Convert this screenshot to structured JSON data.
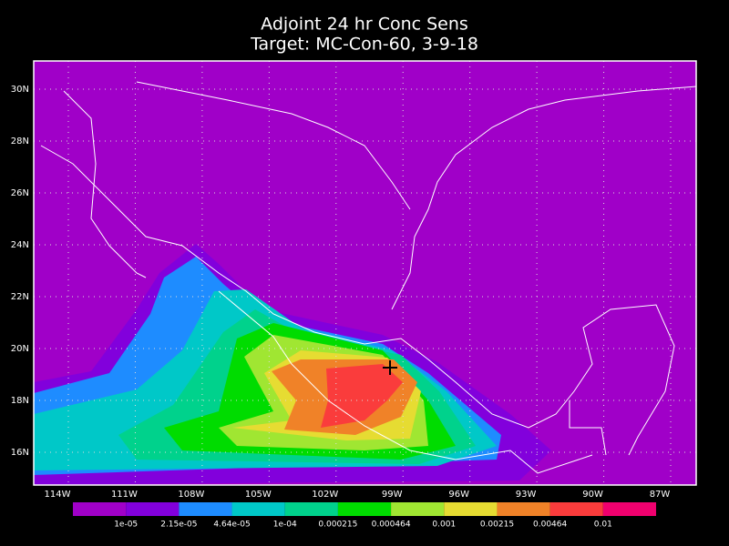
{
  "title": [
    "Adjoint 24 hr Conc Sens",
    "Target: MC-Con-60, 3-9-18"
  ],
  "lat_labels": [
    "30N",
    "28N",
    "26N",
    "24N",
    "22N",
    "20N",
    "18N",
    "16N"
  ],
  "lon_labels": [
    "114W",
    "111W",
    "108W",
    "105W",
    "102W",
    "99W",
    "96W",
    "93W",
    "90W",
    "87W"
  ],
  "colorbar": {
    "labels": [
      "1e-05",
      "2.15e-05",
      "4.64e-05",
      "1e-04",
      "0.000215",
      "0.000464",
      "0.001",
      "0.00215",
      "0.00464",
      "0.01"
    ],
    "colors": [
      "#a000c8",
      "#8200dc",
      "#1e8cff",
      "#00c8c8",
      "#00d28c",
      "#00dc00",
      "#a0e632",
      "#e6dc32",
      "#f08228",
      "#fa3c3c",
      "#f0006e"
    ]
  }
}
